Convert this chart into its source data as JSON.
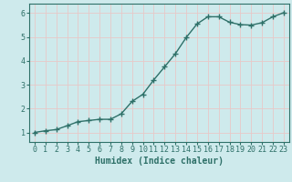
{
  "x": [
    0,
    1,
    2,
    3,
    4,
    5,
    6,
    7,
    8,
    9,
    10,
    11,
    12,
    13,
    14,
    15,
    16,
    17,
    18,
    19,
    20,
    21,
    22,
    23
  ],
  "y": [
    1.0,
    1.07,
    1.12,
    1.28,
    1.45,
    1.5,
    1.55,
    1.55,
    1.78,
    2.3,
    2.6,
    3.2,
    3.75,
    4.3,
    4.98,
    5.55,
    5.85,
    5.85,
    5.62,
    5.52,
    5.5,
    5.6,
    5.85,
    6.02
  ],
  "line_color": "#2e7068",
  "marker": "+",
  "marker_size": 4,
  "marker_linewidth": 1.0,
  "linewidth": 1.0,
  "bg_color": "#ceeaec",
  "grid_color": "#e8c8c8",
  "tick_color": "#2e7068",
  "label_color": "#2e7068",
  "xlabel": "Humidex (Indice chaleur)",
  "xlabel_fontsize": 7,
  "tick_fontsize": 6,
  "ylim": [
    0.6,
    6.4
  ],
  "yticks": [
    1,
    2,
    3,
    4,
    5,
    6
  ],
  "xlim": [
    -0.5,
    23.5
  ],
  "xticks": [
    0,
    1,
    2,
    3,
    4,
    5,
    6,
    7,
    8,
    9,
    10,
    11,
    12,
    13,
    14,
    15,
    16,
    17,
    18,
    19,
    20,
    21,
    22,
    23
  ]
}
